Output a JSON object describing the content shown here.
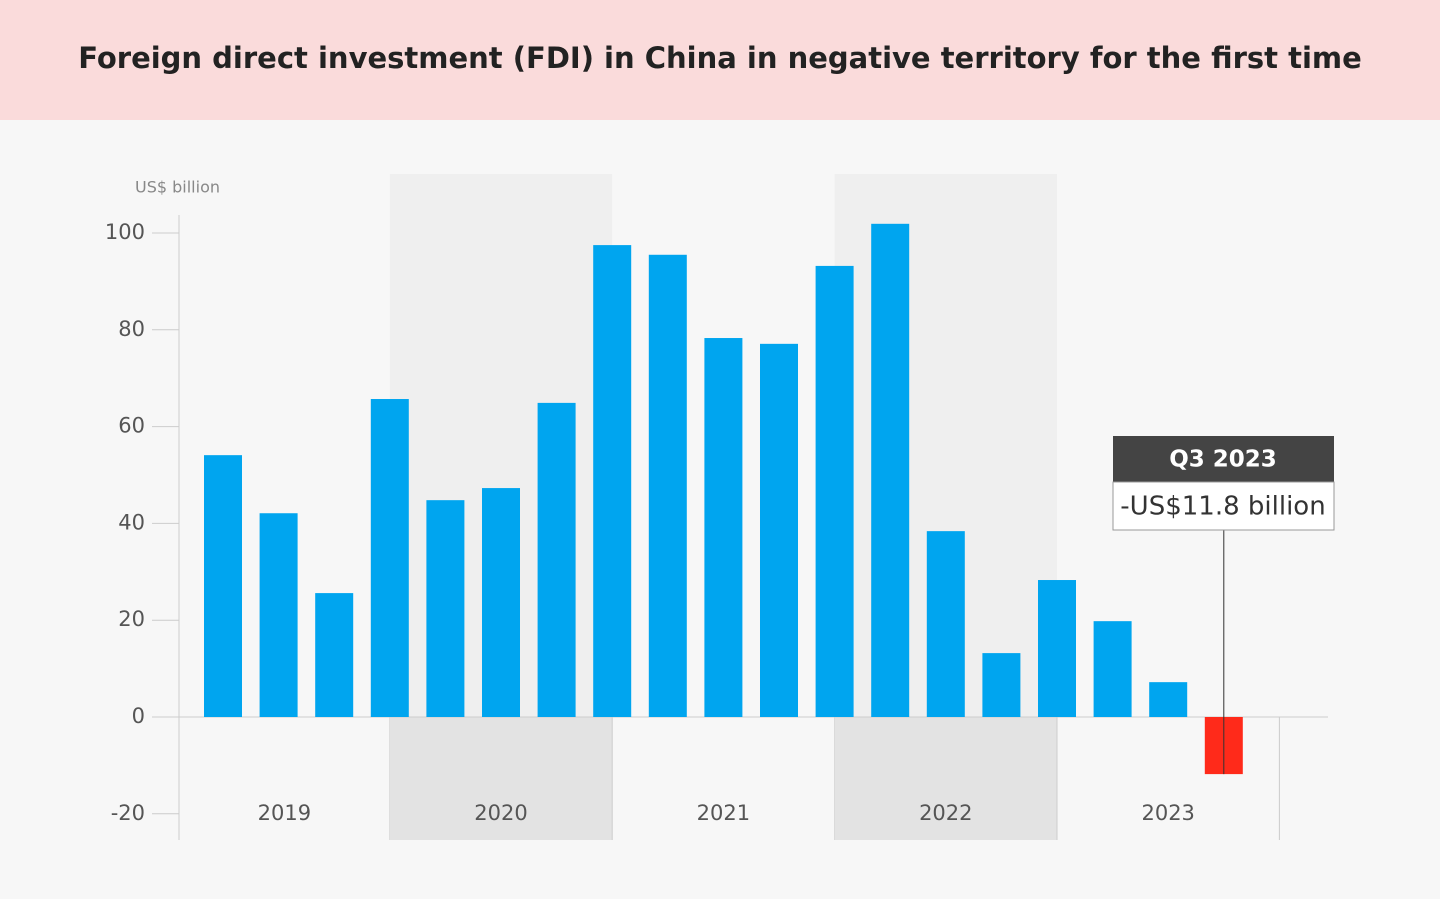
{
  "chart_data": {
    "type": "bar",
    "title": "Foreign direct investment (FDI) in China in negative territory for the first time",
    "y_axis_label": "US$ billion",
    "categories": [
      null,
      null,
      null,
      null,
      null,
      null,
      null,
      null,
      null,
      null,
      null,
      null,
      null,
      null,
      null,
      null,
      null,
      null,
      null
    ],
    "years": [
      "2019",
      "2020",
      "2021",
      "2022",
      "2023"
    ],
    "values": [
      54.1,
      42.1,
      25.6,
      65.7,
      44.8,
      47.3,
      64.9,
      97.5,
      95.5,
      78.3,
      77.1,
      93.2,
      101.9,
      38.4,
      13.2,
      28.3,
      19.8,
      7.2,
      -11.8
    ],
    "color": "#00a5ef",
    "negative_color": "#ff2a1a",
    "ylim": [
      -25,
      104
    ],
    "yticks": [
      -20,
      0,
      20,
      40,
      60,
      80,
      100
    ],
    "annotation": {
      "title": "Q3 2023",
      "text": "-US$11.8 billion"
    }
  }
}
